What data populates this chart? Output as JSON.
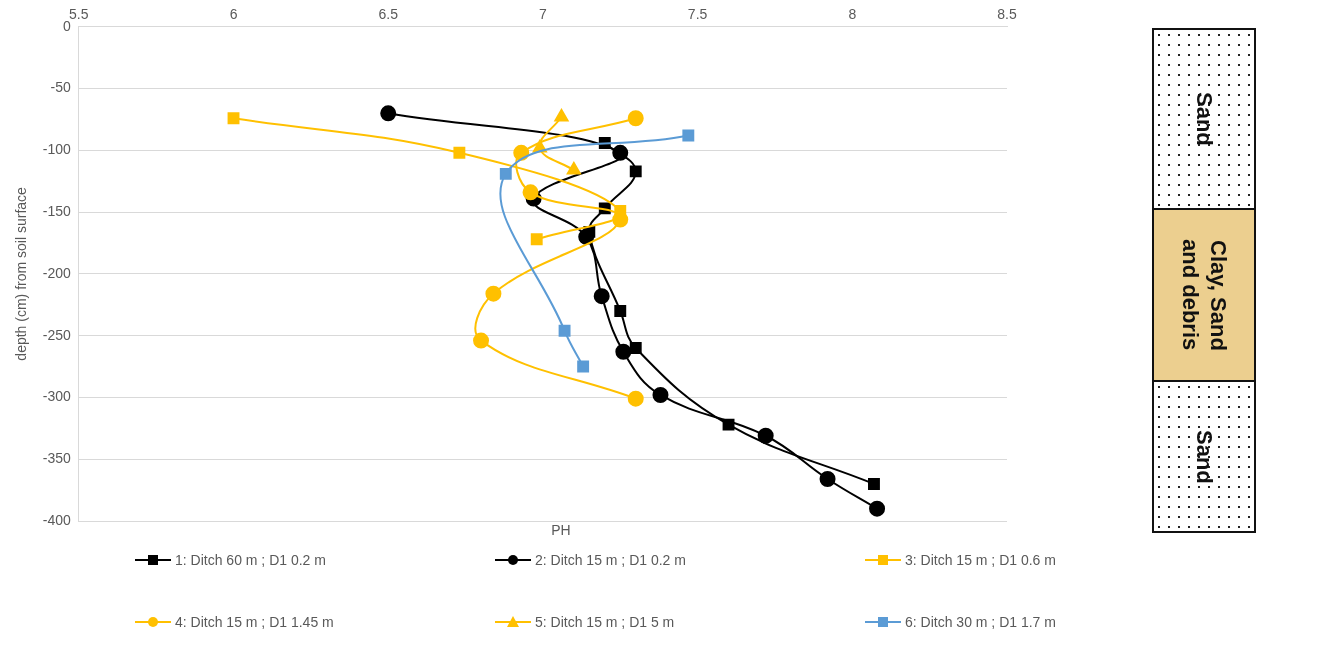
{
  "chart_data": {
    "type": "line",
    "xlabel": "PH",
    "ylabel": "depth (cm) from soil surface",
    "xlim": [
      5.5,
      8.5
    ],
    "xticks": [
      5.5,
      6,
      6.5,
      7,
      7.5,
      8,
      8.5
    ],
    "ylim": [
      -400,
      0
    ],
    "yticks": [
      -400,
      -350,
      -300,
      -250,
      -200,
      -150,
      -100,
      -50,
      0
    ],
    "grid": "y",
    "legend": "bottom",
    "annotations": [
      "Sand",
      "Clay, Sand and debris",
      "Sand"
    ],
    "series": [
      {
        "name": "1: Ditch 60 m ; D1 0.2 m",
        "color": "#000000",
        "marker": "square",
        "x": [
          7.2,
          7.3,
          7.2,
          7.15,
          7.25,
          7.3,
          7.6,
          8.07
        ],
        "values": [
          -94,
          -117,
          -147,
          -166,
          -230,
          -260,
          -322,
          -370
        ]
      },
      {
        "name": "2: Ditch 15 m ; D1 0.2 m",
        "color": "#000000",
        "marker": "circle",
        "x": [
          6.5,
          7.25,
          6.97,
          7.14,
          7.19,
          7.26,
          7.38,
          7.72,
          7.92,
          8.08
        ],
        "values": [
          -70,
          -102,
          -139,
          -170,
          -218,
          -263,
          -298,
          -331,
          -366,
          -390
        ]
      },
      {
        "name": "3: Ditch 15 m ; D1 0.6 m",
        "color": "#ffc000",
        "marker": "square",
        "x": [
          6.0,
          6.73,
          7.25,
          6.98
        ],
        "values": [
          -74,
          -102,
          -149,
          -172
        ]
      },
      {
        "name": "4: Ditch 15 m ; D1 1.45 m",
        "color": "#ffc000",
        "marker": "circle",
        "x": [
          7.3,
          6.93,
          6.96,
          7.25,
          6.84,
          6.8,
          7.3
        ],
        "values": [
          -74,
          -102,
          -134,
          -156,
          -216,
          -254,
          -301
        ]
      },
      {
        "name": "5: Ditch 15 m ; D1 5 m",
        "color": "#ffc000",
        "marker": "triangle",
        "x": [
          7.06,
          6.99,
          7.1
        ],
        "values": [
          -73,
          -98,
          -116
        ]
      },
      {
        "name": "6: Ditch 30 m ; D1 1.7 m",
        "color": "#5b9bd5",
        "marker": "square",
        "x": [
          7.47,
          6.88,
          7.07,
          7.13
        ],
        "values": [
          -88,
          -119,
          -246,
          -275
        ]
      }
    ]
  }
}
